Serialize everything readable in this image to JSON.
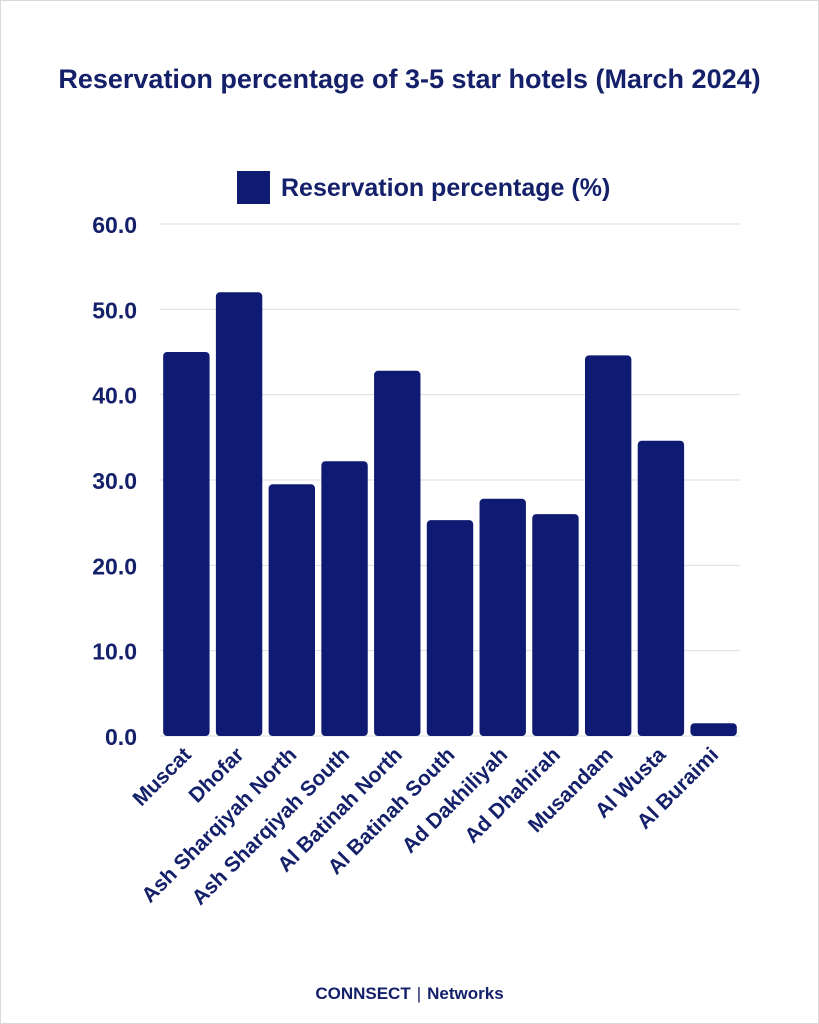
{
  "chart_data": {
    "type": "bar",
    "title": "Reservation percentage of 3-5 star hotels (March 2024)",
    "legend": {
      "label": "Reservation percentage (%)",
      "position": "top"
    },
    "categories": [
      "Muscat",
      "Dhofar",
      "Ash Sharqiyah North",
      "Ash Sharqiyah South",
      "Al Batinah North",
      "Al Batinah South",
      "Ad Dakhiliyah",
      "Ad Dhahirah",
      "Musandam",
      "Al Wusta",
      "Al Buraimi"
    ],
    "series": [
      {
        "name": "Reservation percentage (%)",
        "values": [
          45.0,
          52.0,
          29.5,
          32.2,
          42.8,
          25.3,
          27.8,
          26.0,
          44.6,
          34.6,
          1.5
        ]
      }
    ],
    "yticks": [
      "0.0",
      "10.0",
      "20.0",
      "30.0",
      "40.0",
      "50.0",
      "60.0"
    ],
    "ylim": [
      0,
      60
    ],
    "grid": true,
    "colors": {
      "bar": "#0f1b73",
      "text": "#14206a",
      "grid": "#dedede"
    }
  },
  "footer": {
    "brand": "CONNSECT",
    "separator": "|",
    "suffix": "Networks"
  }
}
